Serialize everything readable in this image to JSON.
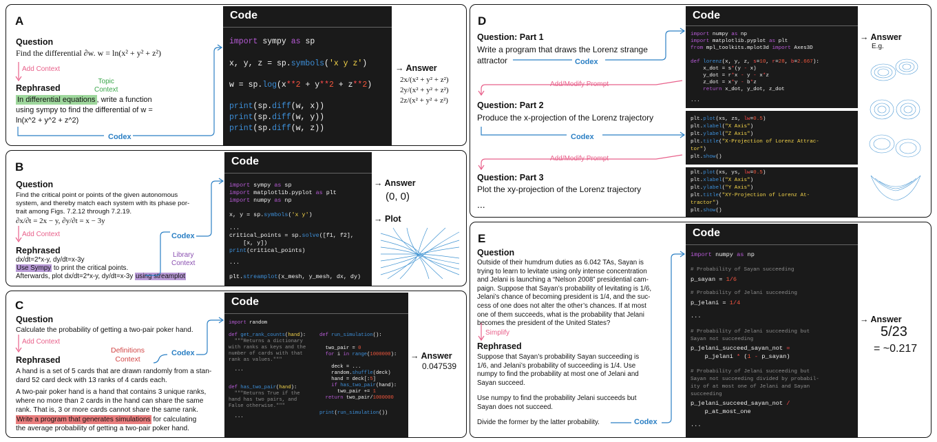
{
  "colors": {
    "pink": "#e8608a",
    "blue": "#2a7fc4",
    "green": "#3aa64a",
    "purple": "#8a4fb0",
    "red": "#d24545"
  },
  "A": {
    "letter": "A",
    "question_label": "Question",
    "question": "Find the differential ∂w. w = ln(x² + y² + z²)",
    "add_context": "Add Context",
    "topic_context_1": "Topic",
    "topic_context_2": "Context",
    "rephrased_label": "Rephrased",
    "rephrased_hl": "In differential equations",
    "rephrased_1": ", write a function",
    "rephrased_2": "using sympy to find the differential of w =",
    "rephrased_3": "ln(x^2 + y^2 + z^2)",
    "codex": "Codex",
    "code_title": "Code",
    "answer_label": "Answer",
    "answers": [
      "2x/(x² + y² + z²)",
      "2y/(x² + y² + z²)",
      "2z/(x² + y² + z²)"
    ]
  },
  "B": {
    "letter": "B",
    "question_label": "Question",
    "question_1": "Find the critical point or points of the given autonomous",
    "question_2": "system, and thereby match each system with its phase por-",
    "question_3": "trait among Figs. 7.2.12 through 7.2.19.",
    "question_4": "∂x/∂t = 2x − y,  ∂y/∂t = x − 3y",
    "add_context": "Add Context",
    "rephrased_label": "Rephrased",
    "rephrased_1": "dx/dt=2*x-y, dy/dt=x-3y",
    "rephrased_hl": "Use Sympy",
    "rephrased_2": " to print the critical points.",
    "rephrased_3": "Afterwards, plot dx/dt=2*x-y, dy/dt=x-3y ",
    "rephrased_hl2": "using streamplot",
    "codex": "Codex",
    "library_context_1": "Library",
    "library_context_2": "Context",
    "code_title": "Code",
    "answer_label": "Answer",
    "answer": "(0, 0)",
    "plot_label": "Plot"
  },
  "C": {
    "letter": "C",
    "question_label": "Question",
    "question": "Calculate the probability of getting a two-pair poker hand.",
    "add_context": "Add Context",
    "definitions_1": "Definitions",
    "definitions_2": "Context",
    "codex": "Codex",
    "rephrased_label": "Rephrased",
    "rephrased_1": "A hand is a set of 5 cards that are drawn randomly from a stan-",
    "rephrased_2": "dard 52 card deck with 13 ranks of 4 cards each.",
    "rephrased_3": "A two-pair poker hand is a hand that contains 3 unique ranks,",
    "rephrased_4": "where no more than 2 cards in the hand can share the same",
    "rephrased_5": "rank. That is, 3 or more cards cannot share the same rank.",
    "rephrased_hl": "Write a program that generates simulations",
    "rephrased_6": " for calculating",
    "rephrased_7": "the average probability of getting a two-pair poker hand.",
    "code_title": "Code",
    "answer_label": "Answer",
    "answer": "0.047539"
  },
  "D": {
    "letter": "D",
    "q1_label": "Question: Part 1",
    "q1_1": "Write a program that draws the Lorenz strange",
    "q1_2": "attractor",
    "codex": "Codex",
    "modify": "Add/Modify Prompt",
    "q2_label": "Question: Part 2",
    "q2": "Produce the x-projection of the Lorenz trajectory",
    "q3_label": "Question: Part 3",
    "q3": "Plot the xy-projection of the Lorenz trajectory",
    "ellipsis": "...",
    "code_title": "Code",
    "answer_label": "Answer",
    "eg": "E.g."
  },
  "E": {
    "letter": "E",
    "question_label": "Question",
    "question_lines": [
      "Outside of their humdrum duties as 6.042 TAs, Sayan is",
      "trying to learn to levitate using only intense concentration",
      "and Jelani is launching a “Nelson 2008” presidential cam-",
      "paign. Suppose that Sayan’s probability of levitating is 1/6,",
      "Jelani’s chance of becoming president is 1/4, and the suc-",
      "cess of one does not alter the other’s chances. If at most",
      "one of them succeeds, what is the probability that Jelani",
      "becomes the president of the United States?"
    ],
    "simplify": "Simplify",
    "rephrased_label": "Rephrased",
    "rephrased_lines": [
      "Suppose that Sayan’s probability Sayan succeeding is",
      "1/6, and Jelani’s probability of succeeding is 1/4. Use",
      "numpy to find the probability at most one of Jelani and",
      "Sayan succeed."
    ],
    "rephrased_lines2": [
      "Use numpy to find the probability Jelani succeeds but",
      "Sayan does not succeed."
    ],
    "rephrased_last": "Divide the former by the latter probability.",
    "codex": "Codex",
    "code_title": "Code",
    "answer_label": "Answer",
    "answer_frac": "5/23",
    "answer_approx": "= ~0.217"
  }
}
